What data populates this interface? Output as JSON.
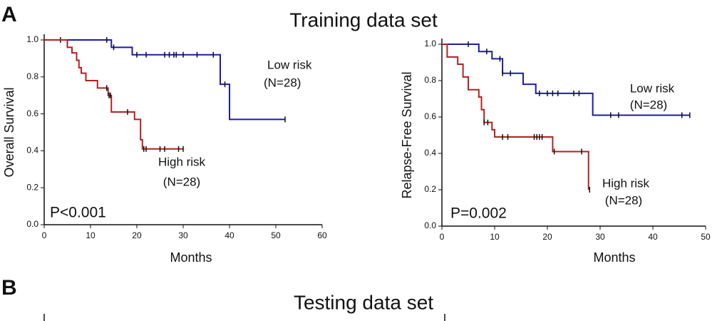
{
  "panels": [
    {
      "label": "A",
      "title": "Training data set"
    },
    {
      "label": "B",
      "title": "Testing data set"
    }
  ],
  "chart_data": [
    {
      "type": "step",
      "xlabel": "Months",
      "ylabel": "Overall Survival",
      "xlim": [
        0,
        60
      ],
      "xticks": [
        0,
        10,
        20,
        30,
        40,
        50,
        60
      ],
      "ylim": [
        0,
        1
      ],
      "yticks": [
        {
          "value": 0,
          "label": "0.0"
        },
        0.2,
        0.4,
        0.6,
        0.8,
        {
          "value": 1,
          "label": "1.0"
        }
      ],
      "annotations": [
        "Low risk",
        "(N=28)",
        "High risk",
        "(N=28)",
        "P<0.001"
      ],
      "series": [
        {
          "color": "#1c1ca8",
          "x": [
            0,
            14.5,
            14.5,
            19,
            19,
            38,
            38,
            40,
            40,
            52
          ],
          "values": [
            1,
            1,
            0.96,
            0.96,
            0.92,
            0.92,
            0.76,
            0.76,
            0.57,
            0.57
          ],
          "censored": {
            "x": [
              3.5,
              13.5,
              15,
              20,
              22,
              26,
              27,
              28,
              28.5,
              30,
              33,
              36.5,
              39,
              52
            ],
            "values": [
              1,
              1,
              0.96,
              0.92,
              0.92,
              0.92,
              0.92,
              0.92,
              0.92,
              0.92,
              0.92,
              0.92,
              0.76,
              0.57
            ]
          }
        },
        {
          "color": "#b52020",
          "x": [
            0,
            5,
            5,
            6,
            6,
            7,
            7,
            7.5,
            7.5,
            8,
            8,
            9,
            9,
            11.5,
            11.5,
            13.8,
            13.8,
            14.5,
            14.5,
            19.5,
            19.5,
            20.8,
            20.8,
            21.2,
            21.2,
            30
          ],
          "values": [
            1,
            1,
            0.96,
            0.96,
            0.93,
            0.93,
            0.89,
            0.89,
            0.85,
            0.85,
            0.82,
            0.82,
            0.78,
            0.78,
            0.74,
            0.74,
            0.7,
            0.7,
            0.61,
            0.61,
            0.57,
            0.57,
            0.46,
            0.46,
            0.41,
            0.41
          ],
          "censored": {
            "x": [
              13.5,
              14,
              14.3,
              18,
              21.5,
              22,
              25,
              26,
              29,
              30
            ],
            "values": [
              0.74,
              0.7,
              0.7,
              0.61,
              0.41,
              0.41,
              0.41,
              0.41,
              0.41,
              0.41
            ]
          }
        }
      ]
    },
    {
      "type": "step",
      "xlabel": "Months",
      "ylabel": "Relapse-Free Survival",
      "xlim": [
        0,
        50
      ],
      "xticks": [
        0,
        10,
        20,
        30,
        40,
        50
      ],
      "ylim": [
        0,
        1
      ],
      "yticks": [
        {
          "value": 0,
          "label": "0.0"
        },
        0.2,
        0.4,
        0.6,
        0.8,
        {
          "value": 1,
          "label": "1.0"
        }
      ],
      "annotations": [
        "Low risk",
        "(N=28)",
        "High risk",
        "(N=28)",
        "P=0.002"
      ],
      "series": [
        {
          "color": "#1c1ca8",
          "x": [
            0,
            7,
            7,
            9.5,
            9.5,
            11.5,
            11.5,
            15.4,
            15.4,
            17.8,
            17.8,
            28.6,
            28.6,
            47
          ],
          "values": [
            1,
            1,
            0.96,
            0.96,
            0.92,
            0.92,
            0.84,
            0.84,
            0.78,
            0.78,
            0.73,
            0.73,
            0.61,
            0.61
          ],
          "censored": {
            "x": [
              5,
              8.5,
              11,
              11.5,
              13,
              18.5,
              20,
              21,
              22,
              25,
              26,
              32,
              33.5,
              45.5,
              47
            ],
            "values": [
              1,
              0.96,
              0.92,
              0.84,
              0.84,
              0.73,
              0.73,
              0.73,
              0.73,
              0.73,
              0.73,
              0.61,
              0.61,
              0.61,
              0.61
            ]
          }
        },
        {
          "color": "#b52020",
          "x": [
            0,
            1,
            1,
            3,
            3,
            4,
            4,
            5,
            5,
            7,
            7,
            7.5,
            7.5,
            8,
            8,
            9.5,
            9.5,
            10,
            10,
            21,
            21,
            27.8,
            27.8
          ],
          "values": [
            1,
            1,
            0.93,
            0.93,
            0.89,
            0.89,
            0.82,
            0.82,
            0.75,
            0.75,
            0.71,
            0.71,
            0.64,
            0.64,
            0.57,
            0.57,
            0.53,
            0.53,
            0.49,
            0.49,
            0.41,
            0.41,
            0.2
          ],
          "censored": {
            "x": [
              8,
              8.7,
              11.5,
              12.5,
              17.5,
              18,
              18.5,
              19,
              21.3,
              26.5,
              28
            ],
            "values": [
              0.57,
              0.57,
              0.49,
              0.49,
              0.49,
              0.49,
              0.49,
              0.49,
              0.41,
              0.41,
              0.2
            ]
          }
        }
      ]
    }
  ]
}
